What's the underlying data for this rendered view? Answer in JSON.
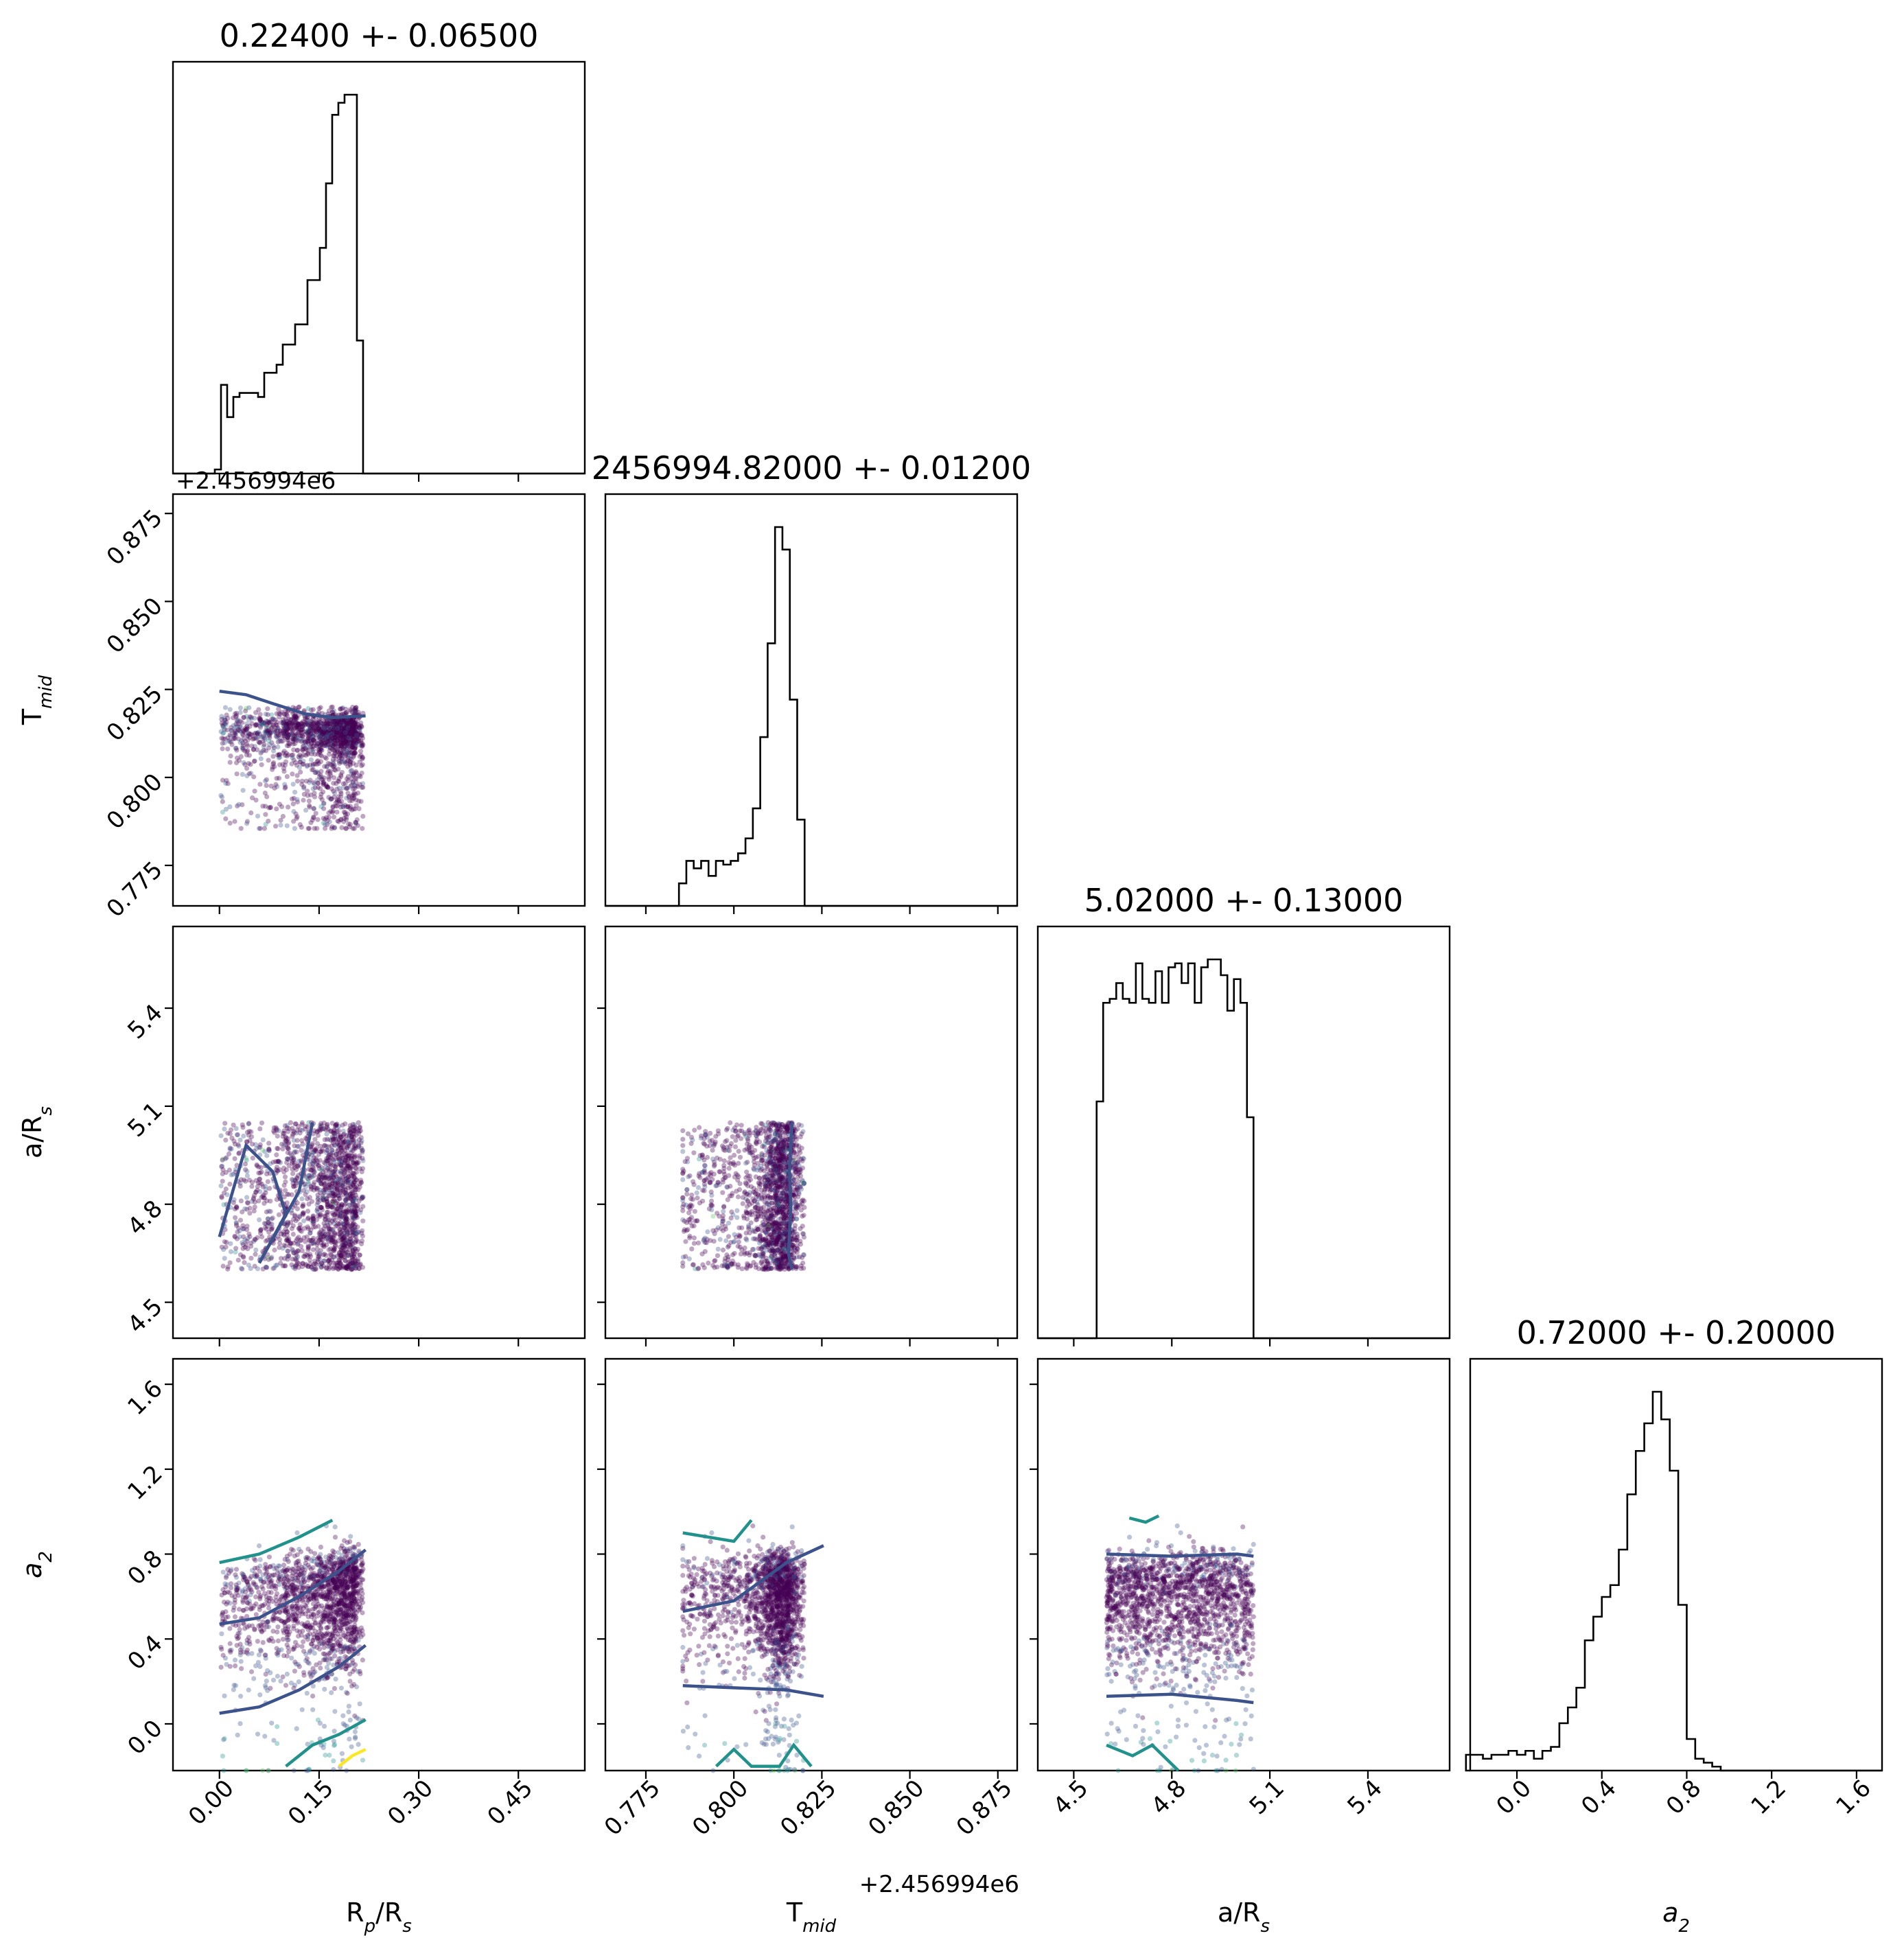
{
  "chart_data": {
    "type": "corner",
    "parameters": [
      {
        "key": "rp",
        "label": "R",
        "sub1": "p",
        "mid": "/R",
        "sub2": "s",
        "range": [
          -0.07,
          0.55
        ],
        "ticks": [
          "0.00",
          "0.15",
          "0.30",
          "0.45"
        ],
        "tick_values": [
          0.0,
          0.15,
          0.3,
          0.45
        ]
      },
      {
        "key": "tmid",
        "label": "T",
        "sub1": "mid",
        "mid": "",
        "sub2": "",
        "range": [
          0.7635,
          0.8805
        ],
        "ticks": [
          "0.775",
          "0.800",
          "0.825",
          "0.850",
          "0.875"
        ],
        "tick_values": [
          0.775,
          0.8,
          0.825,
          0.85,
          0.875
        ],
        "offset_text": "+2.456994e6"
      },
      {
        "key": "ars",
        "label": "a/R",
        "sub1": "",
        "mid": "",
        "sub2": "s",
        "range": [
          4.39,
          5.65
        ],
        "ticks": [
          "4.5",
          "4.8",
          "5.1",
          "5.4"
        ],
        "tick_values": [
          4.5,
          4.8,
          5.1,
          5.4
        ]
      },
      {
        "key": "a2",
        "label": "a",
        "sub1": "2",
        "mid": "",
        "sub2": "",
        "range": [
          -0.22,
          1.72
        ],
        "ticks": [
          "0.0",
          "0.4",
          "0.8",
          "1.2",
          "1.6"
        ],
        "tick_values": [
          0.0,
          0.4,
          0.8,
          1.2,
          1.6
        ]
      }
    ],
    "titles": [
      "0.22400 +- 0.06500",
      "2456994.82000 +- 0.01200",
      "5.02000 +- 0.13000",
      "0.72000 +- 0.20000"
    ],
    "histograms": [
      {
        "edges_start": -0.007,
        "bin_width": 0.0093,
        "counts": [
          1,
          22,
          14,
          19,
          20,
          20,
          20,
          19,
          25,
          25,
          27,
          32,
          32,
          37,
          37,
          48,
          48,
          56,
          72,
          89,
          92,
          94,
          94,
          33
        ]
      },
      {
        "edges_start": 0.7823,
        "bin_width": 0.0021,
        "counts": [
          0,
          6,
          12,
          10,
          12,
          8,
          12,
          11,
          12,
          14,
          18,
          26,
          45,
          70,
          101,
          95,
          55,
          23,
          0
        ]
      },
      {
        "edges_start": 4.55,
        "bin_width": 0.02,
        "counts": [
          0,
          60,
          85,
          86,
          90,
          86,
          85,
          95,
          86,
          85,
          93,
          85,
          94,
          95,
          90,
          95,
          85,
          94,
          96,
          96,
          92,
          83,
          91,
          85,
          56,
          0
        ]
      },
      {
        "edges_start": -0.24,
        "bin_width": 0.04,
        "counts": [
          4,
          4,
          3,
          4,
          4,
          5,
          4,
          5,
          3,
          5,
          6,
          12,
          16,
          21,
          33,
          39,
          44,
          47,
          56,
          70,
          81,
          88,
          96,
          89,
          76,
          42,
          8,
          3,
          2,
          1,
          0,
          0
        ]
      }
    ],
    "scatter_ranges": {
      "rp": [
        0.0,
        0.22
      ],
      "tmid": [
        0.7855,
        0.8255
      ],
      "ars": [
        4.6,
        5.05
      ],
      "a2": [
        -0.22,
        1.0
      ]
    },
    "colormap": "viridis",
    "colors": {
      "dense": "#440154",
      "c1": "#3b528b",
      "c2": "#21918c",
      "c3": "#5ec962",
      "c4": "#fde725"
    }
  }
}
